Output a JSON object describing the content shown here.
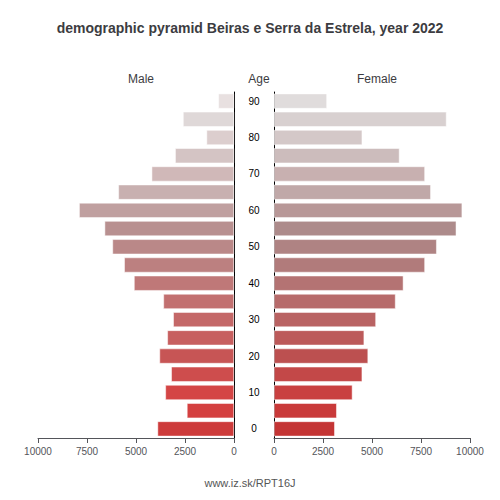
{
  "chart_data": {
    "type": "bar",
    "orientation": "horizontal",
    "title": "demographic pyramid Beiras e Serra da Estrela, year 2022",
    "ylabel": "Age",
    "annotations": [
      "www.iz.sk/RPT16J"
    ],
    "categories": [
      "0",
      null,
      "10",
      null,
      "20",
      null,
      "30",
      null,
      "40",
      null,
      "50",
      null,
      "60",
      null,
      "70",
      null,
      "80",
      null,
      "90"
    ],
    "series": [
      {
        "name": "Male",
        "values": [
          3900,
          2400,
          3500,
          3200,
          3800,
          3400,
          3100,
          3600,
          5100,
          5600,
          6200,
          6600,
          7900,
          5900,
          4200,
          3000,
          1400,
          2600,
          800
        ],
        "colors": [
          "#cd3b3b",
          "#d44040",
          "#d44545",
          "#ce4d4d",
          "#c75555",
          "#c75f5f",
          "#c46868",
          "#c27070",
          "#bf7878",
          "#bc8080",
          "#ba8888",
          "#b89090",
          "#c0a0a0",
          "#c8b0b0",
          "#d0b8b8",
          "#d4c4c4",
          "#dccece",
          "#dfd8d8",
          "#e8e0e0"
        ]
      },
      {
        "name": "Female",
        "values": [
          3100,
          3200,
          4000,
          4500,
          4800,
          4600,
          5200,
          6200,
          6600,
          7700,
          8300,
          9300,
          9600,
          8000,
          7700,
          6400,
          4500,
          8800,
          2700
        ],
        "colors": [
          "#c43535",
          "#c93a3a",
          "#c94040",
          "#c34848",
          "#bc5050",
          "#bc5a5a",
          "#b96363",
          "#b76b6b",
          "#b47373",
          "#b17b7b",
          "#af8383",
          "#ad8b8b",
          "#b89898",
          "#c0a8a8",
          "#c8b0b0",
          "#ccbcbc",
          "#d4c8c8",
          "#d8d0d0",
          "#e0dcdc"
        ]
      }
    ],
    "xlim": [
      0,
      10000
    ],
    "xticks": [
      0,
      2500,
      5000,
      7500,
      10000
    ],
    "grid": false
  }
}
